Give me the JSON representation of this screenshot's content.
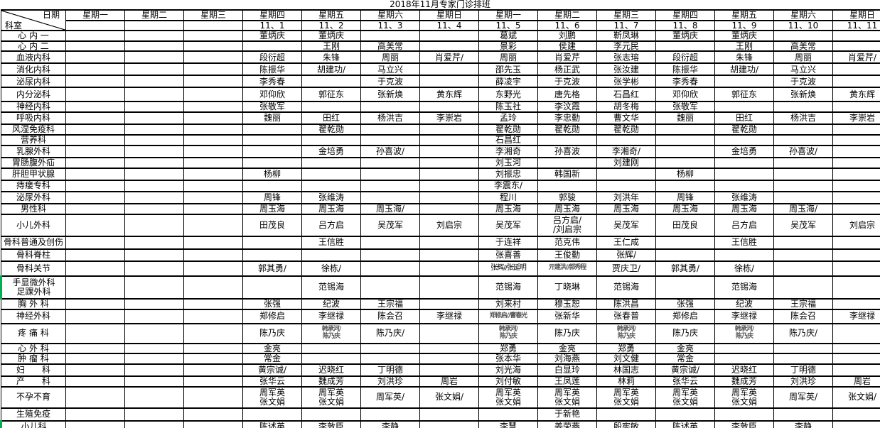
{
  "title": "2018年11月专家门诊排班",
  "colors": {
    "grid": "#000000",
    "text": "#000000",
    "muted_text": "#555555",
    "accent_green": "#00b050",
    "background": "#ffffff"
  },
  "table": {
    "corner": {
      "top_right": "日期",
      "bottom_left": "科室"
    },
    "day_headers": [
      "星期一",
      "星期二",
      "星期三",
      "星期四",
      "星期五",
      "星期六",
      "星期日",
      "星期一",
      "星期二",
      "星期三",
      "星期四",
      "星期五",
      "星期六",
      "星期日"
    ],
    "date_headers": [
      "",
      "",
      "",
      "11、1",
      "11、2",
      "11、3",
      "11、4",
      "11、5",
      "11、6",
      "11、7",
      "11、8",
      "11、9",
      "11、10",
      "11、11"
    ],
    "rows": [
      {
        "dept": "心 内 一",
        "cells": [
          "",
          "",
          "",
          "董炳庆",
          "董炳庆",
          "",
          "",
          "葛斌",
          "刘鹏",
          "靳凤琳",
          "董炳庆",
          "董炳庆",
          "",
          ""
        ]
      },
      {
        "dept": "心 内 二",
        "cells": [
          "",
          "",
          "",
          "",
          "王刚",
          "高美常",
          "",
          "景彩",
          "侯建",
          "李元民",
          "",
          "王刚",
          "高美常",
          ""
        ]
      },
      {
        "dept": "血液内科",
        "cells": [
          "",
          "",
          "",
          "段衍超",
          "朱锋",
          "周丽",
          "肖爱芹/",
          "周丽",
          "肖爱芹",
          "张志瑢",
          "段衍超",
          "朱锋",
          "周丽",
          "肖爱芹/"
        ]
      },
      {
        "dept": "消化内科",
        "cells": [
          "",
          "",
          "",
          "陈振华",
          "胡建功/",
          "马立兴",
          "",
          "邵先玉",
          "杨正武",
          "张汝建",
          "陈振华",
          "胡建功/",
          "马立兴",
          ""
        ]
      },
      {
        "dept": "泌尿内科",
        "cells": [
          "",
          "",
          "",
          "李秀春",
          "",
          "于克波",
          "",
          "薛凌宇",
          "于克波",
          "张学彬",
          "李秀春",
          "",
          "于克波",
          ""
        ]
      },
      {
        "dept": "内分泌科",
        "cells": [
          "",
          "",
          "",
          "邓仰欣",
          "郭征东",
          "张新焕",
          "黄东辉",
          "东野光",
          "唐先格",
          "石昌红",
          "邓仰欣",
          "郭征东",
          "张新焕",
          "黄东辉"
        ]
      },
      {
        "dept": "神经内科",
        "cells": [
          "",
          "",
          "",
          "张敬军",
          "",
          "",
          "",
          "陈玉社",
          "李汶霞",
          "胡冬梅",
          "张敬军",
          "",
          "",
          ""
        ]
      },
      {
        "dept": "呼吸内科",
        "cells": [
          "",
          "",
          "",
          "魏丽",
          "田红",
          "杨洪吉",
          "李崇岩",
          "孟玲",
          "李忠勤",
          "曹文华",
          "魏丽",
          "田红",
          "杨洪吉",
          "李崇岩"
        ]
      },
      {
        "dept": "风湿免疫科",
        "cells": [
          "",
          "",
          "",
          "",
          "翟乾勋",
          "",
          "",
          "翟乾勋",
          "翟乾勋",
          "翟乾勋",
          "",
          "翟乾勋",
          "",
          ""
        ]
      },
      {
        "dept": "营养科",
        "cells": [
          "",
          "",
          "",
          "",
          "",
          "",
          "",
          "石昌红",
          "",
          "",
          "",
          "",
          "",
          ""
        ]
      },
      {
        "dept": "乳腺外科",
        "cells": [
          "",
          "",
          "",
          "",
          "金培勇",
          "孙喜波/",
          "",
          "李湘奇",
          "孙喜波",
          "李湘奇/",
          "",
          "金培勇",
          "孙喜波/",
          ""
        ]
      },
      {
        "dept": "胃肠腹外疝",
        "cells": [
          "",
          "",
          "",
          "",
          "",
          "",
          "",
          "刘玉河",
          "",
          "刘建刚",
          "",
          "",
          "",
          ""
        ]
      },
      {
        "dept": "肝胆甲状腺",
        "cells": [
          "",
          "",
          "",
          "杨柳",
          "",
          "",
          "",
          "刘振忠",
          "韩国新",
          "",
          "杨柳",
          "",
          "",
          ""
        ]
      },
      {
        "dept": "痔瘘专科",
        "cells": [
          "",
          "",
          "",
          "",
          "",
          "",
          "",
          "李震东/",
          "",
          "",
          "",
          "",
          "",
          ""
        ]
      },
      {
        "dept": "泌尿外科",
        "cells": [
          "",
          "",
          "",
          "周锋",
          "张维涛",
          "",
          "",
          "程川",
          "郭骏",
          "刘洪年",
          "周锋",
          "张维涛",
          "",
          ""
        ]
      },
      {
        "dept": "男性科",
        "cells": [
          "",
          "",
          "",
          "周玉海",
          "周玉海",
          "周玉海/",
          "",
          "周玉海",
          "周玉海",
          "周玉海",
          "周玉海",
          "周玉海",
          "周玉海/",
          ""
        ]
      },
      {
        "dept": "小儿外科",
        "cells": [
          "",
          "",
          "",
          "田茂良",
          "吕方启",
          "吴茂军",
          "刘启宗",
          "吴茂军",
          "吕方启/\n/刘启宗",
          "吴茂军",
          "田茂良",
          "吕方启",
          "吴茂军",
          "刘启宗"
        ]
      },
      {
        "dept": "骨科普通及创伤",
        "cells": [
          "",
          "",
          "",
          "",
          "王信胜",
          "",
          "",
          "于连祥",
          "范克伟",
          "王仁成",
          "",
          "王信胜",
          "",
          ""
        ]
      },
      {
        "dept": "骨科脊柱",
        "cells": [
          "",
          "",
          "",
          "",
          "",
          "",
          "",
          "张喜善",
          "王俊勤",
          "张辉/",
          "",
          "",
          "",
          ""
        ]
      },
      {
        "dept": "骨科关节",
        "cells": [
          "",
          "",
          "",
          "郭其勇/",
          "徐栋/",
          "",
          "",
          "张辉//张延明",
          {
            "text": "亓建洪//郭秀程",
            "small": true
          },
          "贾庆卫/",
          "郭其勇/",
          "徐栋/",
          "",
          ""
        ]
      },
      {
        "dept": "手显微外科\n足踝外科",
        "cells": [
          "",
          "",
          "",
          "",
          "范锡海",
          "",
          "",
          "范锡海",
          "丁晓琳",
          "范锡海",
          "",
          "范锡海",
          "",
          ""
        ]
      },
      {
        "dept": "胸 外 科",
        "cells": [
          "",
          "",
          "",
          "张强",
          "纪波",
          "王宗福",
          "",
          "刘来村",
          "穆玉恕",
          "陈洪昌",
          "张强",
          "纪波",
          "王宗福",
          ""
        ]
      },
      {
        "dept": "神经外科",
        "cells": [
          "",
          "",
          "",
          "郑修启",
          "李继禄",
          "陈会召",
          "李继禄",
          {
            "text": "郑修启//曹春光",
            "small": true
          },
          "张新华",
          "张春普",
          "郑修启",
          "李继禄",
          "陈会召",
          "李继禄"
        ]
      },
      {
        "dept": "疼 痛 科",
        "cells": [
          "",
          "",
          "",
          "陈乃庆",
          {
            "text": "韩承河/\n陈乃庆",
            "small": true
          },
          "陈乃庆/",
          "",
          {
            "text": "韩承河/\n陈乃庆",
            "small": true
          },
          "陈乃庆",
          {
            "text": "韩承河/\n陈乃庆",
            "small": true
          },
          "陈乃庆",
          {
            "text": "韩承河/\n陈乃庆",
            "small": true
          },
          "陈乃庆/",
          ""
        ]
      },
      {
        "dept": "心 外 科",
        "cells": [
          "",
          "",
          "",
          "金亮",
          "",
          "",
          "",
          "郑勇",
          "金亮",
          "郑勇",
          "金亮",
          "",
          "",
          ""
        ]
      },
      {
        "dept": "肿 瘤 科",
        "cells": [
          "",
          "",
          "",
          "常金",
          "",
          "",
          "",
          "张本华",
          "刘海燕",
          "刘文健",
          "常金",
          "",
          "",
          ""
        ]
      },
      {
        "dept": "妇　　科",
        "cells": [
          "",
          "",
          "",
          "黄宗诚/",
          "迟晓红",
          "丁明德",
          "",
          "刘光海",
          "白显玲",
          "林国志",
          "黄宗诚/",
          "迟晓红",
          "丁明德",
          ""
        ]
      },
      {
        "dept": "产　　科",
        "cells": [
          "",
          "",
          "",
          "张华云",
          "魏成芳",
          "刘洪珍",
          "周岩",
          "刘付敏",
          "王凤莲",
          "林莉",
          "张华云",
          "魏成芳",
          "刘洪珍",
          "周岩"
        ]
      },
      {
        "dept": "不孕不育",
        "cells": [
          "",
          "",
          "",
          "周军英\n张文娟",
          "周军英\n张文娟",
          "周军英/",
          "张文娟/",
          "周军英\n张文娟",
          "周军英\n张文娟",
          "周军英\n张文娟",
          "周军英\n张文娟",
          "周军英\n张文娟",
          "周军英/",
          "张文娟/"
        ]
      },
      {
        "dept": "生殖免疫",
        "cells": [
          "",
          "",
          "",
          "",
          "",
          "",
          "",
          "",
          "于新艳",
          "",
          "",
          "",
          "",
          ""
        ]
      },
      {
        "dept": "小儿科",
        "cells": [
          "",
          "",
          "",
          "陈述英",
          "李敦臣",
          "李静",
          "",
          "李慧",
          "姜荣燕",
          "殷宪敏",
          "陈述英",
          "李敦臣",
          "李静",
          ""
        ]
      }
    ]
  }
}
